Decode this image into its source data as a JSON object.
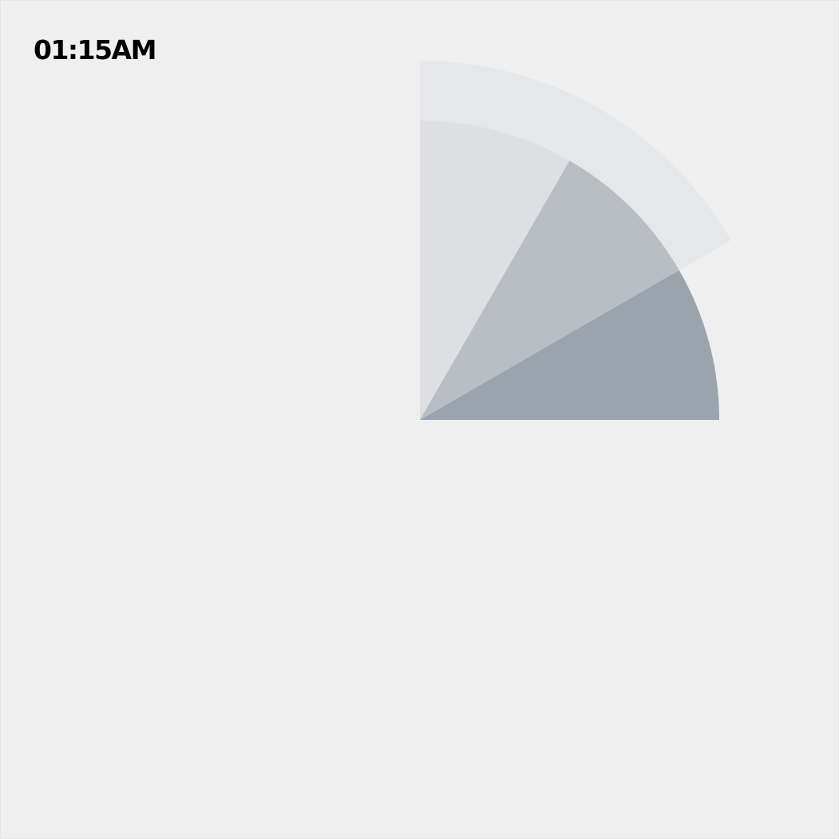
{
  "clock": {
    "time_text": "01:15AM",
    "segments": [
      {
        "hour": 12,
        "color": "#e6e7e9",
        "shade": "lightest"
      },
      {
        "hour": 1,
        "color": "#dedfe2",
        "shade": "light"
      },
      {
        "hour": 2,
        "color": "#b9bec5",
        "shade": "medium"
      },
      {
        "hour": 3,
        "color": "#9ba4ad",
        "shade": "dark"
      }
    ]
  },
  "colors": {
    "background": "#efefef",
    "text": "#000000"
  }
}
